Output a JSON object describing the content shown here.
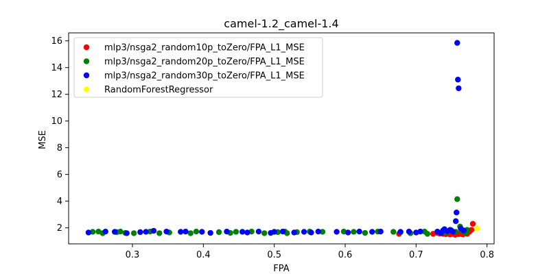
{
  "chart_data": {
    "type": "scatter",
    "title": "camel-1.2_camel-1.4",
    "xlabel": "FPA",
    "ylabel": "MSE",
    "xlim": [
      0.21,
      0.81
    ],
    "ylim": [
      0.8,
      16.6
    ],
    "xticks": [
      0.3,
      0.4,
      0.5,
      0.6,
      0.7,
      0.8
    ],
    "xtick_labels": [
      "0.3",
      "0.4",
      "0.5",
      "0.6",
      "0.7",
      "0.8"
    ],
    "yticks": [
      2,
      4,
      6,
      8,
      10,
      12,
      14,
      16
    ],
    "ytick_labels": [
      "2",
      "4",
      "6",
      "8",
      "10",
      "12",
      "14",
      "16"
    ],
    "grid": false,
    "legend_position": "top-left",
    "series": [
      {
        "name": "mlp3/nsga2_random10p_toZero/FPA_L1_MSE",
        "color": "#ff0000",
        "points": [
          [
            0.676,
            1.55
          ],
          [
            0.724,
            1.55
          ],
          [
            0.73,
            1.62
          ],
          [
            0.733,
            1.58
          ],
          [
            0.738,
            1.55
          ],
          [
            0.742,
            1.52
          ],
          [
            0.746,
            1.58
          ],
          [
            0.748,
            1.5
          ],
          [
            0.752,
            1.55
          ],
          [
            0.755,
            1.48
          ],
          [
            0.758,
            1.6
          ],
          [
            0.76,
            1.52
          ],
          [
            0.763,
            1.55
          ],
          [
            0.766,
            1.5
          ],
          [
            0.768,
            1.58
          ],
          [
            0.77,
            1.62
          ],
          [
            0.772,
            1.55
          ],
          [
            0.775,
            1.7
          ],
          [
            0.778,
            1.85
          ],
          [
            0.78,
            2.3
          ]
        ]
      },
      {
        "name": "mlp3/nsga2_random20p_toZero/FPA_L1_MSE",
        "color": "#008000",
        "points": [
          [
            0.244,
            1.7
          ],
          [
            0.252,
            1.72
          ],
          [
            0.258,
            1.6
          ],
          [
            0.278,
            1.68
          ],
          [
            0.283,
            1.72
          ],
          [
            0.29,
            1.62
          ],
          [
            0.302,
            1.6
          ],
          [
            0.325,
            1.72
          ],
          [
            0.338,
            1.6
          ],
          [
            0.352,
            1.65
          ],
          [
            0.382,
            1.6
          ],
          [
            0.39,
            1.72
          ],
          [
            0.422,
            1.68
          ],
          [
            0.438,
            1.62
          ],
          [
            0.446,
            1.7
          ],
          [
            0.468,
            1.72
          ],
          [
            0.486,
            1.6
          ],
          [
            0.505,
            1.68
          ],
          [
            0.515,
            1.72
          ],
          [
            0.518,
            1.6
          ],
          [
            0.532,
            1.68
          ],
          [
            0.55,
            1.72
          ],
          [
            0.568,
            1.7
          ],
          [
            0.598,
            1.72
          ],
          [
            0.612,
            1.7
          ],
          [
            0.628,
            1.62
          ],
          [
            0.646,
            1.72
          ],
          [
            0.668,
            1.7
          ],
          [
            0.678,
            1.68
          ],
          [
            0.692,
            1.6
          ],
          [
            0.712,
            1.72
          ],
          [
            0.716,
            1.55
          ],
          [
            0.742,
            1.62
          ],
          [
            0.75,
            1.8
          ],
          [
            0.756,
            1.7
          ],
          [
            0.758,
            4.15
          ],
          [
            0.762,
            2.1
          ],
          [
            0.765,
            1.75
          ],
          [
            0.77,
            1.6
          ],
          [
            0.772,
            1.85
          ]
        ]
      },
      {
        "name": "mlp3/nsga2_random30p_toZero/FPA_L1_MSE",
        "color": "#0000ff",
        "points": [
          [
            0.238,
            1.65
          ],
          [
            0.262,
            1.72
          ],
          [
            0.275,
            1.7
          ],
          [
            0.292,
            1.6
          ],
          [
            0.311,
            1.68
          ],
          [
            0.319,
            1.7
          ],
          [
            0.33,
            1.78
          ],
          [
            0.348,
            1.72
          ],
          [
            0.368,
            1.7
          ],
          [
            0.375,
            1.72
          ],
          [
            0.398,
            1.7
          ],
          [
            0.41,
            1.62
          ],
          [
            0.433,
            1.72
          ],
          [
            0.455,
            1.7
          ],
          [
            0.462,
            1.65
          ],
          [
            0.478,
            1.72
          ],
          [
            0.495,
            1.62
          ],
          [
            0.5,
            1.7
          ],
          [
            0.512,
            1.72
          ],
          [
            0.528,
            1.65
          ],
          [
            0.542,
            1.7
          ],
          [
            0.552,
            1.65
          ],
          [
            0.562,
            1.72
          ],
          [
            0.588,
            1.7
          ],
          [
            0.604,
            1.65
          ],
          [
            0.62,
            1.72
          ],
          [
            0.638,
            1.7
          ],
          [
            0.65,
            1.72
          ],
          [
            0.678,
            1.7
          ],
          [
            0.69,
            1.72
          ],
          [
            0.7,
            1.65
          ],
          [
            0.706,
            1.72
          ],
          [
            0.73,
            1.72
          ],
          [
            0.735,
            1.6
          ],
          [
            0.738,
            1.8
          ],
          [
            0.74,
            1.9
          ],
          [
            0.744,
            1.75
          ],
          [
            0.748,
            1.85
          ],
          [
            0.752,
            1.7
          ],
          [
            0.756,
            2.5
          ],
          [
            0.757,
            3.15
          ],
          [
            0.758,
            15.85
          ],
          [
            0.759,
            13.1
          ],
          [
            0.76,
            12.45
          ],
          [
            0.763,
            1.95
          ],
          [
            0.767,
            1.8
          ]
        ]
      },
      {
        "name": "RandomForestRegressor",
        "color": "#ffff00",
        "points": [
          [
            0.786,
            1.95
          ]
        ]
      }
    ]
  }
}
